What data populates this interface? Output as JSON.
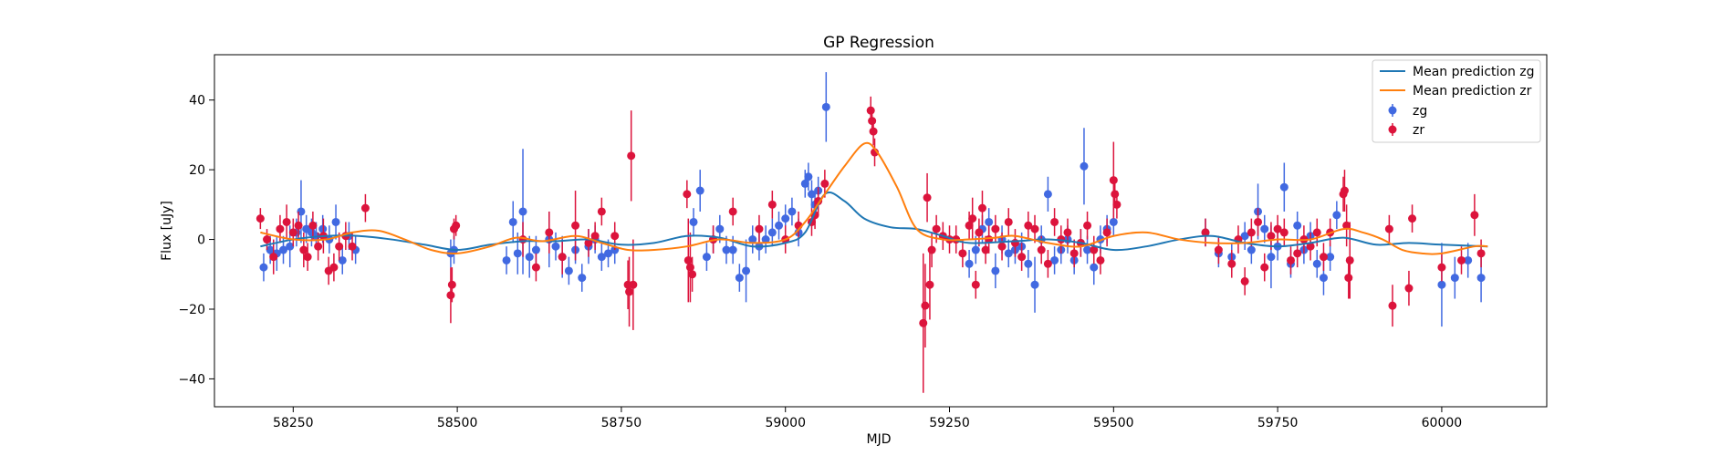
{
  "chart_data": {
    "type": "scatter",
    "title": "GP Regression",
    "xlabel": "MJD",
    "ylabel": "Flux [uJy]",
    "xlim": [
      58130,
      60160
    ],
    "ylim": [
      -48,
      53
    ],
    "xticks": [
      58250,
      58500,
      58750,
      59000,
      59250,
      59500,
      59750,
      60000
    ],
    "yticks": [
      -40,
      -20,
      0,
      20,
      40
    ],
    "grid": false,
    "legend_position": "top-right",
    "colors": {
      "mean_zg": "#1f77b4",
      "mean_zr": "#ff7f0e",
      "zg": "#4169e1",
      "zr": "#dc143c"
    },
    "series": [
      {
        "name": "Mean prediction zg",
        "kind": "line",
        "x": [
          58200,
          58250,
          58300,
          58350,
          58400,
          58450,
          58500,
          58550,
          58600,
          58650,
          58700,
          58750,
          58800,
          58850,
          58900,
          58950,
          59000,
          59030,
          59060,
          59090,
          59120,
          59160,
          59200,
          59240,
          59280,
          59350,
          59400,
          59450,
          59500,
          59550,
          59600,
          59650,
          59700,
          59750,
          59800,
          59850,
          59900,
          59950,
          60000,
          60070
        ],
        "y": [
          -2,
          0,
          1,
          1,
          0,
          -1.5,
          -3,
          -1.5,
          -0.5,
          -0.5,
          0,
          -1.5,
          -1,
          1,
          0.5,
          -2,
          -1,
          2,
          13,
          11,
          6,
          3.5,
          3,
          1,
          -1,
          -0.5,
          0,
          -1,
          -3,
          -2,
          0,
          1,
          -1,
          -2,
          -1,
          0.5,
          -1.5,
          -1,
          -1.5,
          -2
        ]
      },
      {
        "name": "Mean prediction zr",
        "kind": "line",
        "x": [
          58200,
          58250,
          58300,
          58340,
          58380,
          58420,
          58460,
          58500,
          58550,
          58590,
          58630,
          58680,
          58720,
          58760,
          58800,
          58850,
          58900,
          58950,
          59000,
          59030,
          59060,
          59090,
          59120,
          59140,
          59170,
          59200,
          59240,
          59280,
          59320,
          59350,
          59400,
          59450,
          59500,
          59550,
          59600,
          59650,
          59700,
          59750,
          59800,
          59850,
          59880,
          59910,
          59940,
          59970,
          60000,
          60050,
          60070
        ],
        "y": [
          2,
          0,
          0,
          2,
          2.5,
          0,
          -3,
          -4,
          -2,
          0.5,
          -0.5,
          1,
          -1,
          -3,
          -3,
          -2,
          0,
          -1,
          0,
          5,
          13,
          21,
          27.5,
          25,
          15,
          3,
          0,
          0,
          0.5,
          1,
          -1,
          -2,
          1,
          2,
          0,
          -1,
          -1,
          0,
          0,
          3,
          2,
          0,
          -3,
          -4,
          -4,
          -2,
          -2
        ]
      },
      {
        "name": "zg",
        "kind": "errorbar",
        "x": [
          58205,
          58215,
          58225,
          58235,
          58245,
          58255,
          58262,
          58270,
          58278,
          58285,
          58295,
          58305,
          58315,
          58325,
          58335,
          58345,
          58490,
          58495,
          58575,
          58585,
          58592,
          58600,
          58610,
          58620,
          58640,
          58650,
          58660,
          58670,
          58680,
          58690,
          58700,
          58710,
          58720,
          58730,
          58740,
          58860,
          58870,
          58880,
          58890,
          58900,
          58910,
          58920,
          58930,
          58940,
          58950,
          58960,
          58970,
          58980,
          58990,
          59000,
          59010,
          59020,
          59030,
          59035,
          59040,
          59045,
          59050,
          59062,
          59280,
          59290,
          59300,
          59310,
          59320,
          59330,
          59340,
          59350,
          59360,
          59370,
          59380,
          59390,
          59400,
          59410,
          59420,
          59430,
          59440,
          59450,
          59455,
          59460,
          59470,
          59480,
          59490,
          59500,
          59640,
          59660,
          59680,
          59700,
          59710,
          59720,
          59730,
          59740,
          59750,
          59760,
          59770,
          59780,
          59790,
          59800,
          59810,
          59820,
          59830,
          59840,
          60000,
          60020,
          60040,
          60060
        ],
        "y": [
          -8,
          -3,
          -4,
          -3,
          -2,
          2,
          8,
          3,
          2,
          1,
          3,
          0,
          5,
          -6,
          1,
          -3,
          -4,
          -3,
          -6,
          5,
          -4,
          8,
          -5,
          -3,
          0,
          -2,
          -5,
          -9,
          -3,
          -11,
          -2,
          0,
          -5,
          -4,
          -3,
          5,
          14,
          -5,
          0,
          3,
          -3,
          -3,
          -11,
          -9,
          0,
          -2,
          0,
          2,
          4,
          6,
          8,
          2,
          16,
          18,
          13,
          10,
          14,
          38,
          -7,
          -3,
          3,
          5,
          -9,
          0,
          -4,
          -3,
          -2,
          -7,
          -13,
          0,
          13,
          -6,
          -3,
          0,
          -6,
          -1,
          21,
          -3,
          -8,
          0,
          3,
          5,
          2,
          -4,
          -5,
          1,
          -3,
          8,
          3,
          -5,
          -2,
          15,
          -7,
          4,
          -3,
          1,
          -7,
          -11,
          -5,
          7,
          -13,
          -11,
          -6,
          -11
        ],
        "error": [
          4,
          4,
          5,
          4,
          6,
          4,
          9,
          4,
          4,
          4,
          4,
          4,
          5,
          4,
          4,
          4,
          4,
          4,
          4,
          6,
          6,
          18,
          6,
          4,
          8,
          4,
          6,
          4,
          4,
          4,
          5,
          4,
          4,
          4,
          4,
          4,
          6,
          4,
          4,
          4,
          4,
          4,
          4,
          9,
          4,
          4,
          4,
          4,
          4,
          4,
          4,
          4,
          4,
          4,
          4,
          4,
          4,
          10,
          4,
          4,
          4,
          4,
          5,
          4,
          4,
          4,
          4,
          4,
          8,
          4,
          5,
          4,
          4,
          4,
          4,
          4,
          11,
          4,
          5,
          4,
          4,
          4,
          4,
          4,
          4,
          4,
          4,
          8,
          4,
          9,
          4,
          7,
          4,
          4,
          4,
          4,
          4,
          5,
          4,
          4,
          12,
          6,
          5,
          7
        ]
      },
      {
        "name": "zr",
        "kind": "errorbar",
        "x": [
          58200,
          58210,
          58220,
          58230,
          58240,
          58250,
          58258,
          58266,
          58272,
          58280,
          58288,
          58296,
          58304,
          58312,
          58320,
          58330,
          58340,
          58360,
          58490,
          58492,
          58495,
          58498,
          58600,
          58620,
          58640,
          58660,
          58680,
          58700,
          58710,
          58720,
          58740,
          58760,
          58762,
          58765,
          58768,
          58850,
          58852,
          58855,
          58858,
          58890,
          58920,
          58960,
          58980,
          59000,
          59020,
          59040,
          59045,
          59050,
          59060,
          59130,
          59132,
          59134,
          59136,
          59210,
          59213,
          59216,
          59220,
          59223,
          59230,
          59240,
          59250,
          59260,
          59270,
          59280,
          59285,
          59290,
          59295,
          59300,
          59305,
          59310,
          59320,
          59330,
          59340,
          59350,
          59360,
          59370,
          59380,
          59390,
          59400,
          59410,
          59420,
          59430,
          59440,
          59450,
          59460,
          59470,
          59480,
          59490,
          59500,
          59502,
          59505,
          59640,
          59660,
          59680,
          59690,
          59700,
          59710,
          59720,
          59730,
          59740,
          59750,
          59760,
          59770,
          59780,
          59790,
          59800,
          59810,
          59820,
          59830,
          59850,
          59852,
          59855,
          59858,
          59860,
          59920,
          59925,
          59950,
          59955,
          60000,
          60030,
          60050,
          60060
        ],
        "y": [
          6,
          0,
          -5,
          3,
          5,
          2,
          4,
          -3,
          -5,
          4,
          -2,
          1,
          -9,
          -8,
          -2,
          1,
          -2,
          9,
          -16,
          -13,
          3,
          4,
          0,
          -8,
          2,
          -5,
          4,
          -1,
          1,
          8,
          1,
          -13,
          -15,
          24,
          -13,
          13,
          -6,
          -8,
          -10,
          0,
          8,
          3,
          10,
          0,
          4,
          5,
          7,
          11,
          16,
          37,
          34,
          31,
          25,
          -24,
          -19,
          12,
          -13,
          -3,
          3,
          1,
          0,
          0,
          -4,
          4,
          6,
          -13,
          2,
          9,
          -3,
          0,
          3,
          -2,
          5,
          -1,
          -5,
          4,
          3,
          -3,
          -7,
          5,
          0,
          2,
          -4,
          -1,
          4,
          -3,
          -6,
          2,
          17,
          13,
          10,
          2,
          -3,
          -7,
          0,
          -12,
          2,
          5,
          -8,
          1,
          3,
          2,
          -6,
          -4,
          0,
          -2,
          2,
          -5,
          2,
          13,
          14,
          4,
          -11,
          -6,
          3,
          -19,
          -14,
          6,
          -8,
          -6,
          7,
          -4
        ],
        "error": [
          3,
          3,
          5,
          4,
          5,
          4,
          4,
          5,
          4,
          4,
          4,
          5,
          4,
          4,
          4,
          4,
          4,
          4,
          8,
          5,
          3,
          3,
          5,
          4,
          6,
          5,
          10,
          4,
          4,
          4,
          4,
          7,
          10,
          13,
          13,
          4,
          12,
          10,
          5,
          4,
          4,
          4,
          4,
          4,
          4,
          4,
          4,
          4,
          4,
          4,
          4,
          4,
          4,
          20,
          12,
          7,
          10,
          5,
          4,
          4,
          4,
          4,
          4,
          4,
          6,
          4,
          4,
          5,
          4,
          4,
          4,
          4,
          4,
          4,
          4,
          4,
          4,
          4,
          4,
          4,
          4,
          4,
          4,
          4,
          4,
          4,
          4,
          4,
          11,
          4,
          4,
          4,
          4,
          4,
          4,
          4,
          4,
          4,
          4,
          4,
          4,
          4,
          4,
          4,
          4,
          4,
          4,
          4,
          4,
          5,
          6,
          6,
          6,
          11,
          4,
          6,
          5,
          4,
          4,
          4,
          6,
          4
        ]
      }
    ]
  }
}
